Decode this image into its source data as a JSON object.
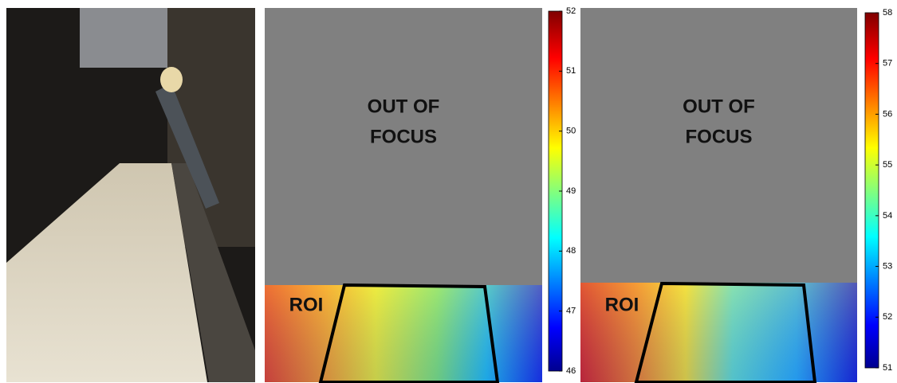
{
  "panels": [
    {
      "title_lines": [
        "OUT OF",
        "FOCUS"
      ],
      "roi_label": "ROI",
      "colorbar": {
        "lim": [
          46,
          52
        ],
        "ticks": [
          46,
          47,
          48,
          49,
          50,
          51,
          52
        ]
      }
    },
    {
      "title_lines": [
        "OUT OF",
        "FOCUS"
      ],
      "roi_label": "ROI",
      "colorbar": {
        "lim": [
          51,
          58
        ],
        "ticks": [
          51,
          52,
          53,
          54,
          55,
          56,
          57,
          58
        ]
      }
    }
  ]
}
